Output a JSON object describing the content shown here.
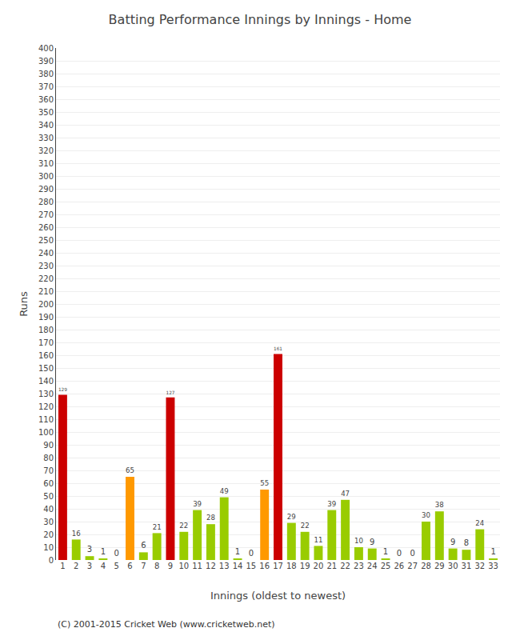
{
  "chart_data": {
    "type": "bar",
    "title": "Batting Performance Innings by Innings - Home",
    "xlabel": "Innings (oldest to newest)",
    "ylabel": "Runs",
    "annotations": [
      "(C) 2001-2015 Cricket Web (www.cricketweb.net)"
    ],
    "categories": [
      1,
      2,
      3,
      4,
      5,
      6,
      7,
      8,
      9,
      10,
      11,
      12,
      13,
      14,
      15,
      16,
      17,
      18,
      19,
      20,
      21,
      22,
      23,
      24,
      25,
      26,
      27,
      28,
      29,
      30,
      31,
      32,
      33
    ],
    "values": [
      129,
      16,
      3,
      1,
      0,
      65,
      6,
      21,
      127,
      22,
      39,
      28,
      49,
      1,
      0,
      55,
      161,
      29,
      22,
      11,
      39,
      47,
      10,
      9,
      1,
      0,
      0,
      30,
      38,
      9,
      8,
      24,
      1
    ],
    "colors": [
      "#cc0000",
      "#99cc00",
      "#99cc00",
      "#99cc00",
      "#99cc00",
      "#ff9900",
      "#99cc00",
      "#99cc00",
      "#cc0000",
      "#99cc00",
      "#99cc00",
      "#99cc00",
      "#99cc00",
      "#99cc00",
      "#99cc00",
      "#ff9900",
      "#cc0000",
      "#99cc00",
      "#99cc00",
      "#99cc00",
      "#99cc00",
      "#99cc00",
      "#99cc00",
      "#99cc00",
      "#99cc00",
      "#99cc00",
      "#99cc00",
      "#99cc00",
      "#99cc00",
      "#99cc00",
      "#99cc00",
      "#99cc00",
      "#99cc00"
    ],
    "ylim": [
      0,
      400
    ],
    "yticks": [
      0,
      10,
      20,
      30,
      40,
      50,
      60,
      70,
      80,
      90,
      100,
      110,
      120,
      130,
      140,
      150,
      160,
      170,
      180,
      190,
      200,
      210,
      220,
      230,
      240,
      250,
      260,
      270,
      280,
      290,
      300,
      310,
      320,
      330,
      340,
      350,
      360,
      370,
      380,
      390,
      400
    ],
    "grid": true,
    "data_labels": true
  }
}
